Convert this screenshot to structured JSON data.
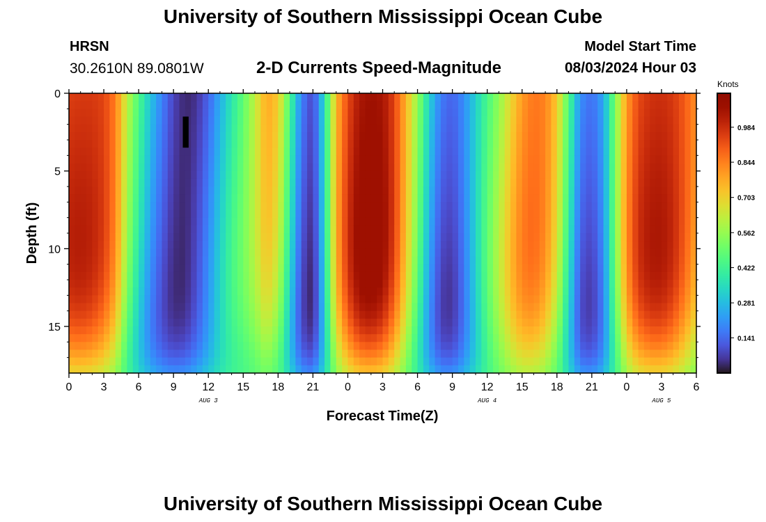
{
  "header": {
    "title": "University of Southern Mississippi Ocean Cube",
    "station": "HRSN",
    "coordinates": "30.2610N  89.0801W",
    "plot_title": "2-D Currents Speed-Magnitude",
    "model_start_label": "Model Start Time",
    "model_start_value": "08/03/2024 Hour 03"
  },
  "footer": {
    "title": "University of Southern Mississippi Ocean Cube"
  },
  "colorbar": {
    "unit": "Knots",
    "ticks": [
      "0.984",
      "0.844",
      "0.703",
      "0.562",
      "0.422",
      "0.281",
      "0.141"
    ],
    "tick_values": [
      0.984,
      0.844,
      0.703,
      0.562,
      0.422,
      0.281,
      0.141
    ],
    "range": [
      0.0,
      1.12
    ],
    "colormap": "turbo"
  },
  "chart_data": {
    "type": "heatmap",
    "title": "2-D Currents Speed-Magnitude",
    "xlabel": "Forecast Time(Z)",
    "ylabel": "Depth (ft)",
    "x_tick_labels": [
      "0",
      "3",
      "6",
      "9",
      "12",
      "15",
      "18",
      "21",
      "0",
      "3",
      "6",
      "9",
      "12",
      "15",
      "18",
      "21",
      "0",
      "3",
      "6"
    ],
    "x_tick_hours": [
      0,
      3,
      6,
      9,
      12,
      15,
      18,
      21,
      24,
      27,
      30,
      33,
      36,
      39,
      42,
      45,
      48,
      51,
      54
    ],
    "date_labels": [
      {
        "text": "AUG 3",
        "hour": 12
      },
      {
        "text": "AUG 4",
        "hour": 36
      },
      {
        "text": "AUG 5",
        "hour": 51
      }
    ],
    "y_tick_labels": [
      "0",
      "5",
      "10",
      "15"
    ],
    "y_tick_values": [
      0,
      5,
      10,
      15
    ],
    "xlim": [
      0,
      54
    ],
    "ylim": [
      18,
      0
    ],
    "surface_speed_by_hour": [
      [
        0,
        0.95
      ],
      [
        1,
        0.96
      ],
      [
        2,
        0.96
      ],
      [
        3,
        0.94
      ],
      [
        4,
        0.85
      ],
      [
        5,
        0.62
      ],
      [
        6,
        0.45
      ],
      [
        7,
        0.3
      ],
      [
        8,
        0.18
      ],
      [
        9,
        0.08
      ],
      [
        10,
        0.03
      ],
      [
        11,
        0.05
      ],
      [
        12,
        0.13
      ],
      [
        13,
        0.25
      ],
      [
        14,
        0.37
      ],
      [
        15,
        0.48
      ],
      [
        16,
        0.62
      ],
      [
        17,
        0.78
      ],
      [
        18,
        0.72
      ],
      [
        19,
        0.45
      ],
      [
        20,
        0.18
      ],
      [
        21,
        0.08
      ],
      [
        22,
        0.35
      ],
      [
        23,
        0.75
      ],
      [
        24,
        0.93
      ],
      [
        25,
        1.03
      ],
      [
        26,
        1.06
      ],
      [
        27,
        1.04
      ],
      [
        28,
        0.94
      ],
      [
        29,
        0.76
      ],
      [
        30,
        0.56
      ],
      [
        31,
        0.33
      ],
      [
        32,
        0.17
      ],
      [
        33,
        0.13
      ],
      [
        34,
        0.2
      ],
      [
        35,
        0.32
      ],
      [
        36,
        0.44
      ],
      [
        37,
        0.55
      ],
      [
        38,
        0.68
      ],
      [
        39,
        0.8
      ],
      [
        40,
        0.86
      ],
      [
        41,
        0.84
      ],
      [
        42,
        0.72
      ],
      [
        43,
        0.46
      ],
      [
        44,
        0.2
      ],
      [
        45,
        0.15
      ],
      [
        46,
        0.24
      ],
      [
        47,
        0.52
      ],
      [
        48,
        0.8
      ],
      [
        49,
        0.93
      ],
      [
        50,
        0.97
      ],
      [
        51,
        0.98
      ],
      [
        52,
        0.96
      ],
      [
        53,
        0.9
      ],
      [
        54,
        0.82
      ]
    ],
    "min_speed": 0.03,
    "max_speed": 1.06,
    "missing_data": {
      "hour_start": 9.8,
      "hour_end": 10.3,
      "depth_start": 1.5,
      "depth_end": 3.5
    }
  }
}
